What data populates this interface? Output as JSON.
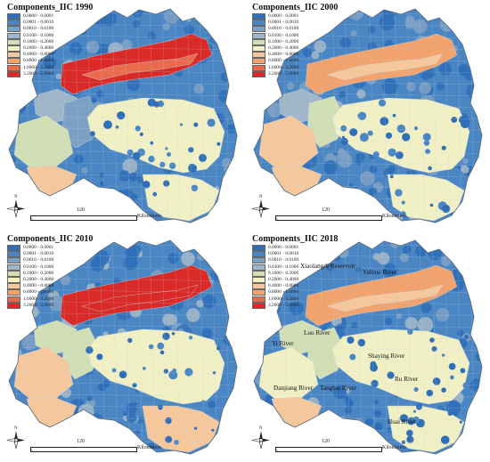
{
  "panels": [
    {
      "title": "Components_IIC 1990",
      "variant": 0
    },
    {
      "title": "Components_IIC 2000",
      "variant": 1
    },
    {
      "title": "Components_IIC 2010",
      "variant": 2
    },
    {
      "title": "Components_IIC 2018",
      "variant": 3
    }
  ],
  "legend": {
    "items": [
      {
        "label": "0.0000 - 0.0001",
        "color": "#2f6fb8"
      },
      {
        "label": "0.0001 - 0.0010",
        "color": "#4a86c4"
      },
      {
        "label": "0.0010 - 0.0100",
        "color": "#7ca0c4"
      },
      {
        "label": "0.0100 - 0.1000",
        "color": "#9fb6c8"
      },
      {
        "label": "0.1000 - 0.2000",
        "color": "#d2dfb4"
      },
      {
        "label": "0.2000 - 0.4000",
        "color": "#f1efc4"
      },
      {
        "label": "0.4000 - 0.8000",
        "color": "#f5c79a"
      },
      {
        "label": "0.8000 - 1.6000",
        "color": "#f2a26c"
      },
      {
        "label": "1.6000 - 3.2000",
        "color": "#ea6a4c"
      },
      {
        "label": "3.2000 - 5.0000",
        "color": "#d92a27"
      }
    ]
  },
  "scale": {
    "zero": "0",
    "value": "120",
    "unit": "Kilometers"
  },
  "north_label": "N",
  "river_labels": [
    "Xiaolangdi Reservoir",
    "Yellow River",
    "Luo River",
    "Yi River",
    "Shaying River",
    "Ru River",
    "Danjiang River",
    "Tangbai River",
    "Huai River"
  ],
  "colors": {
    "background": "#ffffff",
    "outline": "#5a6e86",
    "boundary": "#c8d3df"
  }
}
